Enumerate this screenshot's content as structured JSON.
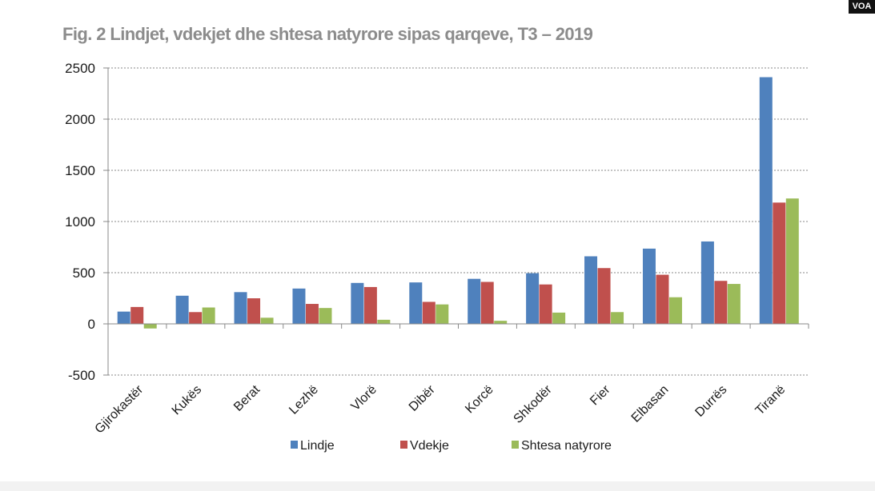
{
  "badge": "VOA",
  "chart_data": {
    "type": "bar",
    "title": "Fig. 2  Lindjet, vdekjet dhe shtesa natyrore sipas qarqeve, T3 – 2019",
    "xlabel": "",
    "ylabel": "",
    "ylim": [
      -500,
      2500
    ],
    "yticks": [
      -500,
      0,
      500,
      1000,
      1500,
      2000,
      2500
    ],
    "grid": true,
    "legend_position": "bottom",
    "categories": [
      "Gjirokastër",
      "Kukës",
      "Berat",
      "Lezhë",
      "Vlorë",
      "Dibër",
      "Korcë",
      "Shkodër",
      "Fier",
      "Elbasan",
      "Durrës",
      "Tiranë"
    ],
    "series": [
      {
        "name": "Lindje",
        "color": "#4f81bd",
        "values": [
          120,
          275,
          310,
          345,
          400,
          405,
          440,
          495,
          660,
          735,
          805,
          2410
        ]
      },
      {
        "name": "Vdekje",
        "color": "#c0504d",
        "values": [
          165,
          115,
          250,
          195,
          360,
          215,
          410,
          385,
          545,
          480,
          420,
          1185
        ]
      },
      {
        "name": "Shtesa natyrore",
        "color": "#9bbb59",
        "values": [
          -45,
          160,
          60,
          155,
          40,
          190,
          30,
          110,
          115,
          260,
          390,
          1225
        ]
      }
    ]
  }
}
